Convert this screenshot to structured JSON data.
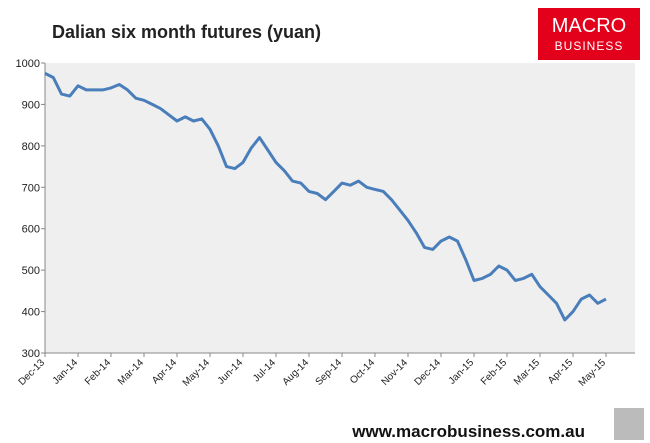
{
  "chart_data": {
    "type": "line",
    "title": "Dalian six month futures (yuan)",
    "categories": [
      "Dec-13",
      null,
      null,
      null,
      "Jan-14",
      null,
      null,
      null,
      "Feb-14",
      null,
      null,
      null,
      "Mar-14",
      null,
      null,
      null,
      "Apr-14",
      null,
      null,
      null,
      "May-14",
      null,
      null,
      null,
      "Jun-14",
      null,
      null,
      null,
      "Jul-14",
      null,
      null,
      null,
      "Aug-14",
      null,
      null,
      null,
      "Sep-14",
      null,
      null,
      null,
      "Oct-14",
      null,
      null,
      null,
      "Nov-14",
      null,
      null,
      null,
      "Dec-14",
      null,
      null,
      null,
      "Jan-15",
      null,
      null,
      null,
      "Feb-15",
      null,
      null,
      null,
      "Mar-15",
      null,
      null,
      null,
      "Apr-15",
      null,
      null,
      null,
      "May-15"
    ],
    "series": [
      {
        "name": "Dalian six month futures",
        "color": "#4a7ebb",
        "values": [
          975,
          965,
          925,
          920,
          945,
          935,
          935,
          935,
          940,
          948,
          935,
          915,
          910,
          900,
          890,
          875,
          860,
          870,
          860,
          865,
          840,
          800,
          750,
          745,
          760,
          795,
          820,
          790,
          760,
          740,
          715,
          710,
          690,
          685,
          670,
          690,
          710,
          705,
          715,
          700,
          695,
          690,
          670,
          645,
          620,
          590,
          555,
          550,
          570,
          580,
          570,
          525,
          475,
          480,
          490,
          510,
          500,
          475,
          480,
          490,
          460,
          440,
          420,
          380,
          400,
          430,
          440,
          420,
          430
        ]
      }
    ],
    "ylim": [
      300,
      1000
    ],
    "yticks": [
      300,
      400,
      500,
      600,
      700,
      800,
      900,
      1000
    ],
    "grid": false
  },
  "logo": {
    "line1": "MACRO",
    "line2": "BUSINESS"
  },
  "footer": "www.macrobusiness.com.au"
}
